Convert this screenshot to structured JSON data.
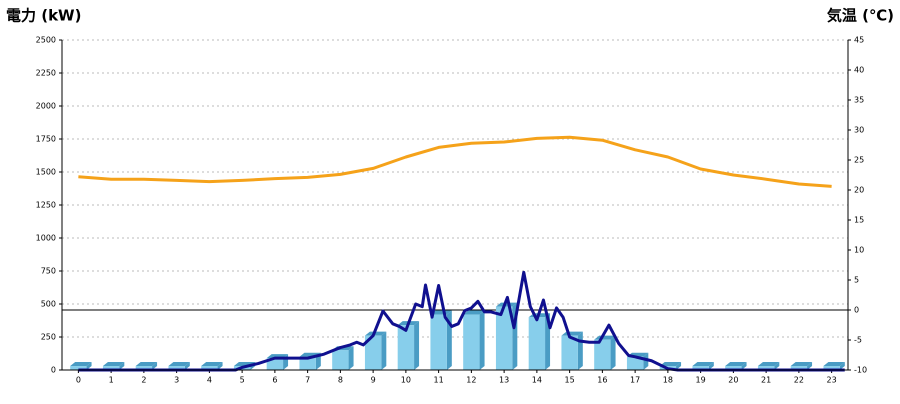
{
  "chart_data": {
    "type": "combo",
    "y_title": "電力 (kW)",
    "y2_title": "気温 (℃)",
    "y_title_color": "#1565b0",
    "y2_title_color": "#f08a1c",
    "categories": [
      "0",
      "1",
      "2",
      "3",
      "4",
      "5",
      "6",
      "7",
      "8",
      "9",
      "10",
      "11",
      "12",
      "13",
      "14",
      "15",
      "16",
      "17",
      "18",
      "19",
      "20",
      "21",
      "22",
      "23"
    ],
    "ylim": [
      0,
      2500
    ],
    "yticks": [
      0,
      250,
      500,
      750,
      1000,
      1250,
      1500,
      1750,
      2000,
      2250,
      2500
    ],
    "y2lim": [
      -10,
      45
    ],
    "y2ticks": [
      -10,
      -5,
      0,
      5,
      10,
      15,
      20,
      25,
      30,
      35,
      40,
      45
    ],
    "grid": true,
    "y2_zero_line": true,
    "series": [
      {
        "type": "bar",
        "color": "#87ceeb",
        "side_color": "#4a9cc4",
        "values": [
          30,
          30,
          30,
          30,
          30,
          30,
          90,
          100,
          150,
          260,
          340,
          420,
          420,
          480,
          400,
          260,
          230,
          100,
          30,
          30,
          30,
          30,
          30,
          30
        ]
      },
      {
        "type": "line",
        "color": "#10108f",
        "x": [
          0,
          4.8,
          5.0,
          5.5,
          6.0,
          6.5,
          7.0,
          7.5,
          8.0,
          8.3,
          8.5,
          8.7,
          9.0,
          9.3,
          9.6,
          9.8,
          10.0,
          10.3,
          10.5,
          10.6,
          10.8,
          11.0,
          11.2,
          11.4,
          11.6,
          11.8,
          12.0,
          12.2,
          12.4,
          12.6,
          12.9,
          13.1,
          13.3,
          13.6,
          13.8,
          14.0,
          14.2,
          14.4,
          14.6,
          14.8,
          15.0,
          15.3,
          15.6,
          15.9,
          16.2,
          16.5,
          16.8,
          17.0,
          17.5,
          18.0,
          18.3,
          23.4
        ],
        "values": [
          0,
          0,
          20,
          50,
          90,
          90,
          90,
          120,
          170,
          190,
          210,
          190,
          260,
          447,
          350,
          330,
          300,
          500,
          480,
          644,
          400,
          640,
          400,
          330,
          350,
          450,
          470,
          520,
          440,
          440,
          420,
          550,
          320,
          740,
          480,
          380,
          530,
          320,
          470,
          400,
          250,
          220,
          210,
          210,
          340,
          200,
          110,
          100,
          70,
          10,
          0,
          0
        ]
      },
      {
        "type": "line",
        "axis": "y2",
        "color": "#f5a21a",
        "x": [
          0,
          1,
          2,
          3,
          4,
          5,
          6,
          7,
          8,
          9,
          10,
          11,
          12,
          13,
          14,
          15,
          16,
          17,
          18,
          19,
          20,
          21,
          22,
          23
        ],
        "values": [
          22.2,
          21.8,
          21.8,
          21.6,
          21.4,
          21.6,
          21.9,
          22.1,
          22.6,
          23.6,
          25.5,
          27.1,
          27.8,
          28.0,
          28.6,
          28.8,
          28.3,
          26.7,
          25.5,
          23.5,
          22.5,
          21.8,
          21.0,
          20.6
        ]
      }
    ]
  }
}
